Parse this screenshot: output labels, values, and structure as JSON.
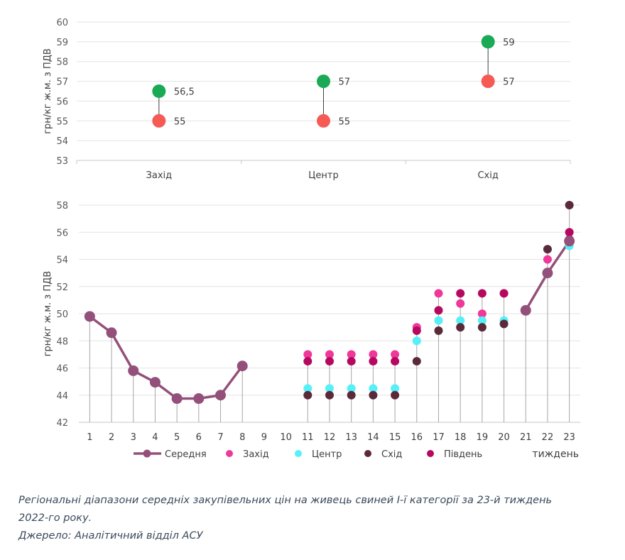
{
  "chart_data": [
    {
      "type": "range-dot",
      "ylabel": "грн/кг ж.м. з ПДВ",
      "ylim": [
        53,
        60
      ],
      "yticks": [
        "53",
        "54",
        "55",
        "56",
        "57",
        "58",
        "59",
        "60"
      ],
      "categories": [
        "Захід",
        "Центр",
        "Схід"
      ],
      "series": [
        {
          "role": "max",
          "color": "#1aaa55",
          "values": [
            56.5,
            57,
            59
          ],
          "labels": [
            "56,5",
            "57",
            "59"
          ]
        },
        {
          "role": "min",
          "color": "#f55a55",
          "values": [
            55,
            55,
            57
          ],
          "labels": [
            "55",
            "55",
            "57"
          ]
        }
      ],
      "grid": true
    },
    {
      "type": "line+scatter",
      "ylabel": "грн/кг ж.м. з ПДВ",
      "xlabel": "тиждень",
      "ylim": [
        42,
        58
      ],
      "yticks": [
        "42",
        "44",
        "46",
        "48",
        "50",
        "52",
        "54",
        "56",
        "58"
      ],
      "x": [
        "1",
        "2",
        "3",
        "4",
        "5",
        "6",
        "7",
        "8",
        "9",
        "10",
        "11",
        "12",
        "13",
        "14",
        "15",
        "16",
        "17",
        "18",
        "19",
        "20",
        "21",
        "22",
        "23"
      ],
      "legend_position": "bottom",
      "series": [
        {
          "name": "Середня",
          "type": "line",
          "color": "#93507a",
          "values": [
            49.8,
            48.6,
            45.8,
            44.95,
            43.75,
            43.75,
            44.0,
            46.15,
            null,
            null,
            null,
            null,
            null,
            null,
            null,
            null,
            null,
            null,
            null,
            null,
            50.25,
            53.0,
            55.35
          ]
        },
        {
          "name": "Захід",
          "type": "scatter",
          "color": "#f0379a",
          "values": [
            null,
            null,
            null,
            null,
            null,
            null,
            null,
            null,
            null,
            null,
            47.0,
            47.0,
            47.0,
            47.0,
            47.0,
            49.0,
            51.5,
            50.75,
            50.0,
            51.5,
            null,
            54.0,
            55.5
          ]
        },
        {
          "name": "Центр",
          "type": "scatter",
          "color": "#55f0f8",
          "values": [
            null,
            null,
            null,
            null,
            null,
            null,
            null,
            null,
            null,
            null,
            44.5,
            44.5,
            44.5,
            44.5,
            44.5,
            48.0,
            49.5,
            49.5,
            49.5,
            49.5,
            null,
            53.0,
            55.0
          ]
        },
        {
          "name": "Схід",
          "type": "scatter",
          "color": "#5a2a3a",
          "values": [
            null,
            null,
            null,
            null,
            null,
            null,
            null,
            null,
            null,
            null,
            44.0,
            44.0,
            44.0,
            44.0,
            44.0,
            46.5,
            48.75,
            49.0,
            49.0,
            49.25,
            null,
            54.75,
            58.0
          ]
        },
        {
          "name": "Південь",
          "type": "scatter",
          "color": "#b5085e",
          "values": [
            null,
            null,
            null,
            null,
            null,
            null,
            null,
            null,
            null,
            null,
            46.5,
            46.5,
            46.5,
            46.5,
            46.5,
            48.75,
            50.25,
            51.5,
            51.5,
            51.5,
            null,
            53.0,
            56.0
          ]
        }
      ],
      "grid": true
    }
  ],
  "caption": {
    "line1": "Регіональні діапазони середніх закупівельних цін на живець свиней І-ї категорії за 23-й тиждень",
    "line2": "2022-го року.",
    "line3": "Джерело: Аналітичний відділ АСУ"
  }
}
